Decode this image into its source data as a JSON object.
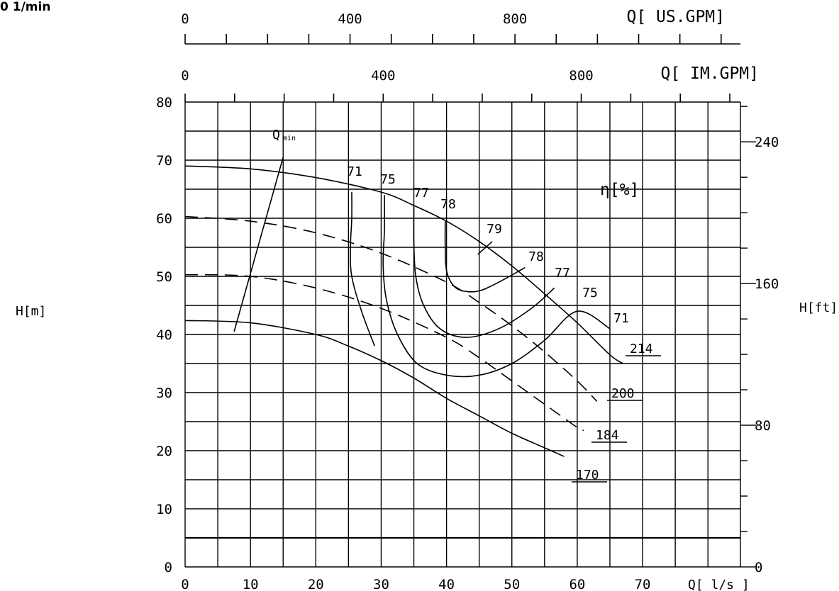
{
  "corner_label": "0 1/min",
  "chart_data": {
    "type": "line",
    "xlabel": "Q[ l/s ]",
    "ylabel_left": "H[m]",
    "ylabel_right": "H[ft]",
    "xlim": [
      0,
      85
    ],
    "ylim": [
      0,
      80
    ],
    "x_ticks": [
      0,
      10,
      20,
      30,
      40,
      50,
      60,
      70
    ],
    "y_ticks": [
      0,
      10,
      20,
      30,
      40,
      50,
      60,
      70,
      80
    ],
    "right_ticks": [
      0,
      80,
      160,
      240
    ],
    "grid": true,
    "top_axis_us": {
      "label": "Q[ US.GPM]",
      "ticks": [
        0,
        400,
        800
      ]
    },
    "top_axis_im": {
      "label": "Q[ IM.GPM]",
      "ticks": [
        0,
        400,
        800
      ]
    },
    "efficiency_label": "η[%]",
    "qmin_label": "Q",
    "qmin_sub": "min",
    "series": [
      {
        "name": "214",
        "x": [
          0,
          10,
          20,
          30,
          35,
          40,
          45,
          50,
          55,
          60,
          65,
          67
        ],
        "y": [
          69,
          68.5,
          67,
          64.5,
          62.2,
          59.5,
          56,
          51.8,
          47,
          42,
          36.5,
          35
        ]
      },
      {
        "name": "200",
        "x": [
          0,
          10,
          20,
          30,
          40,
          45,
          50,
          55,
          60,
          63
        ],
        "y": [
          60.3,
          59.5,
          57.5,
          54,
          49,
          45.5,
          41.5,
          37,
          32,
          28.5
        ]
      },
      {
        "name": "184",
        "x": [
          0,
          10,
          20,
          30,
          40,
          45,
          50,
          55,
          60,
          61
        ],
        "y": [
          50.3,
          50,
          48,
          44.5,
          39.5,
          36,
          32,
          28,
          24,
          23.5
        ]
      },
      {
        "name": "170",
        "x": [
          0,
          10,
          20,
          25,
          30,
          35,
          40,
          45,
          50,
          55,
          58
        ],
        "y": [
          42.4,
          42,
          40,
          38,
          35.5,
          32.5,
          29,
          26,
          23,
          20.5,
          19
        ]
      }
    ],
    "efficiency_curves": [
      {
        "label": "71",
        "x": [
          25.5,
          25.5,
          25.3,
          25.5,
          27,
          29
        ],
        "y": [
          64.5,
          60,
          55,
          50,
          44,
          38
        ]
      },
      {
        "label": "75",
        "x": [
          30.5,
          30.5,
          30.3,
          30.8,
          32.5,
          35.5,
          40,
          45,
          50,
          55,
          60,
          65
        ],
        "y": [
          64,
          58,
          52,
          46,
          40,
          35,
          33,
          33,
          35,
          39,
          44,
          41
        ]
      },
      {
        "label": "77",
        "x": [
          35,
          35,
          35.3,
          36.5,
          39,
          43,
          48,
          53,
          56.5
        ],
        "y": [
          62,
          56,
          50,
          45,
          41,
          39.5,
          41,
          44.5,
          48
        ]
      },
      {
        "label": "78",
        "x": [
          39.8,
          39.8,
          40,
          41,
          42.5,
          45,
          48,
          52
        ],
        "y": [
          59.5,
          55,
          51,
          48.5,
          47.5,
          47.5,
          49,
          51.5
        ]
      },
      {
        "label": "79",
        "x": [
          44.8,
          47
        ],
        "y": [
          53.8,
          56
        ]
      }
    ],
    "qmin_line": {
      "x": [
        7.5,
        15
      ],
      "y": [
        40.5,
        70.5
      ]
    }
  }
}
